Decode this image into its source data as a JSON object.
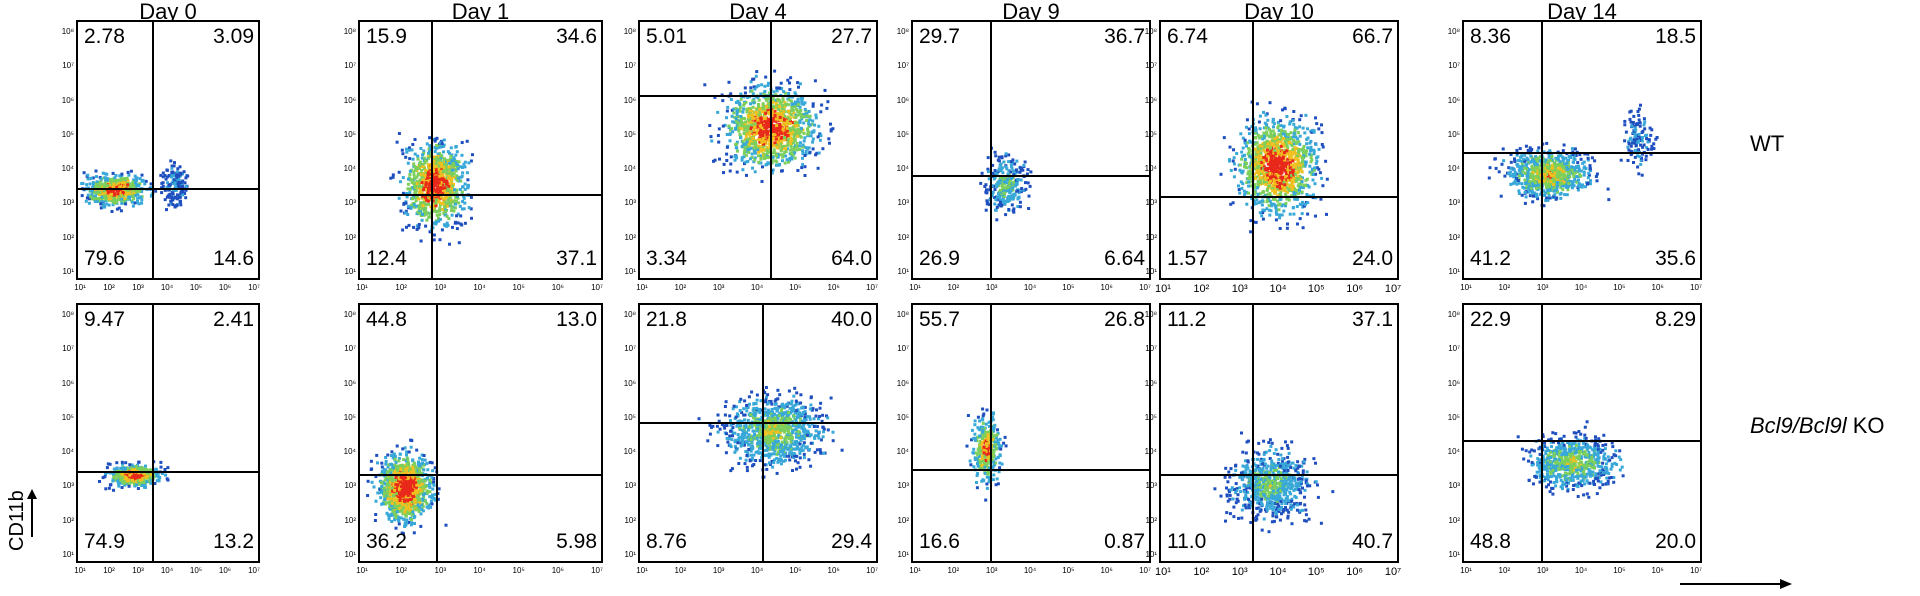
{
  "columns": [
    "Day 0",
    "Day 1",
    "Day 4",
    "Day 9",
    "Day 10",
    "Day 14"
  ],
  "rows": [
    {
      "label_plain": "WT",
      "label_italic": ""
    },
    {
      "label_plain": " KO",
      "label_italic": "Bcl9/Bcl9l"
    }
  ],
  "y_axis_label": "CD11b",
  "quadrants": [
    [
      {
        "ul": "2.78",
        "ur": "3.09",
        "ll": "79.6",
        "lr": "14.6"
      },
      {
        "ul": "15.9",
        "ur": "34.6",
        "ll": "12.4",
        "lr": "37.1"
      },
      {
        "ul": "5.01",
        "ur": "27.7",
        "ll": "3.34",
        "lr": "64.0"
      },
      {
        "ul": "29.7",
        "ur": "36.7",
        "ll": "26.9",
        "lr": "6.64"
      },
      {
        "ul": "6.74",
        "ur": "66.7",
        "ll": "1.57",
        "lr": "24.0"
      },
      {
        "ul": "8.36",
        "ur": "18.5",
        "ll": "41.2",
        "lr": "35.6"
      }
    ],
    [
      {
        "ul": "9.47",
        "ur": "2.41",
        "ll": "74.9",
        "lr": "13.2"
      },
      {
        "ul": "44.8",
        "ur": "13.0",
        "ll": "36.2",
        "lr": "5.98"
      },
      {
        "ul": "21.8",
        "ur": "40.0",
        "ll": "8.76",
        "lr": "29.4"
      },
      {
        "ul": "55.7",
        "ur": "26.8",
        "ll": "16.6",
        "lr": "0.87"
      },
      {
        "ul": "11.2",
        "ur": "37.1",
        "ll": "11.0",
        "lr": "40.7"
      },
      {
        "ul": "22.9",
        "ur": "8.29",
        "ll": "48.8",
        "lr": "20.0"
      }
    ]
  ],
  "tick_labels": {
    "y": [
      "10⁸",
      "10⁷",
      "10⁶",
      "10⁵",
      "10⁴",
      "10³",
      "10²",
      "10¹"
    ],
    "x": [
      "10¹",
      "10²",
      "10³",
      "10⁴",
      "10⁵",
      "10⁶",
      "10⁷"
    ]
  },
  "colors": {
    "low": "#1f4fbf",
    "mid_low": "#38a8d8",
    "mid": "#7ccf5a",
    "mid_high": "#f0c020",
    "high": "#e8281a"
  }
}
